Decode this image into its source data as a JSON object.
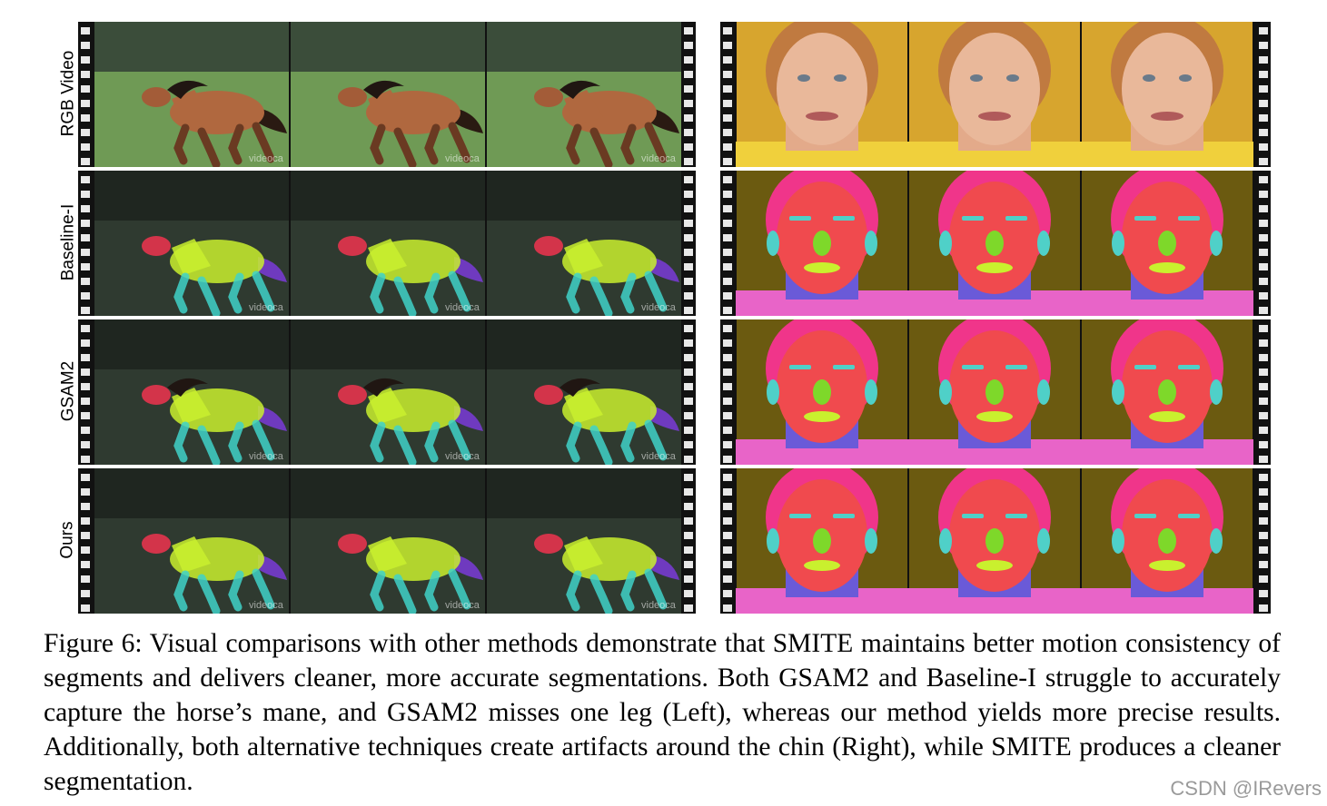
{
  "rows": [
    {
      "label": "RGB Video"
    },
    {
      "label": "Baseline-I"
    },
    {
      "label": "GSAM2"
    },
    {
      "label": "Ours"
    }
  ],
  "watermark_text": "videoca",
  "caption": "Figure 6: Visual comparisons with other methods demonstrate that SMITE maintains better motion consistency of segments and delivers cleaner, more accurate segmentations. Both GSAM2 and Baseline-I struggle to accurately capture the horse’s mane, and GSAM2 misses one leg (Left), whereas our method yields more precise results. Additionally, both alternative techniques create artifacts around the chin (Right), while SMITE produces a cleaner segmentation.",
  "credit": "CSDN @IRevers",
  "colors": {
    "head": "#f0344f",
    "body": "#c9f02e",
    "legs": "#3fd2c8",
    "tail": "#7a3bd8",
    "hair": "#f0358a",
    "skin": "#f04a4e",
    "nose": "#7ed82a",
    "brows": "#4fd0c8",
    "neck": "#6a5ad8",
    "shirt": "#e864c8",
    "face_bg": "#d7a52e",
    "seg_bg": "#6b5a10",
    "grass": "#6f9a55",
    "sky_trees": "#3b4d3a"
  }
}
